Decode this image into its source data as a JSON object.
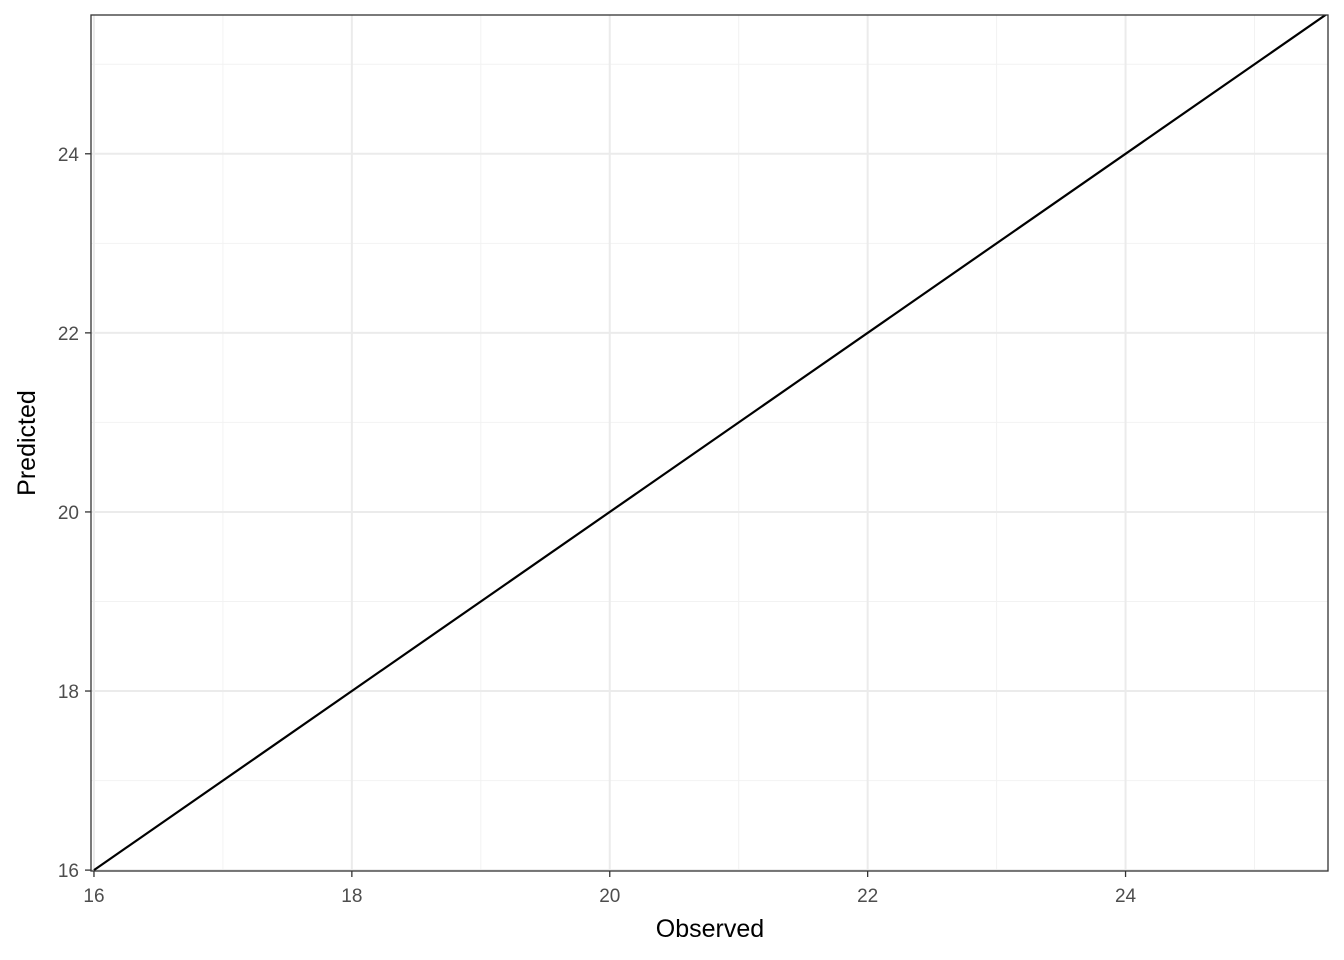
{
  "chart_data": {
    "type": "line",
    "title": "",
    "xlabel": "Observed",
    "ylabel": "Predicted",
    "xlim": [
      15.977,
      25.57
    ],
    "ylim": [
      15.99,
      25.55
    ],
    "xticks": [
      16,
      18,
      20,
      22,
      24
    ],
    "yticks": [
      16,
      18,
      20,
      22,
      24
    ],
    "grid": true,
    "series": [
      {
        "x": [
          16,
          25.6
        ],
        "y": [
          16,
          25.6
        ],
        "color": "#000000"
      }
    ]
  }
}
